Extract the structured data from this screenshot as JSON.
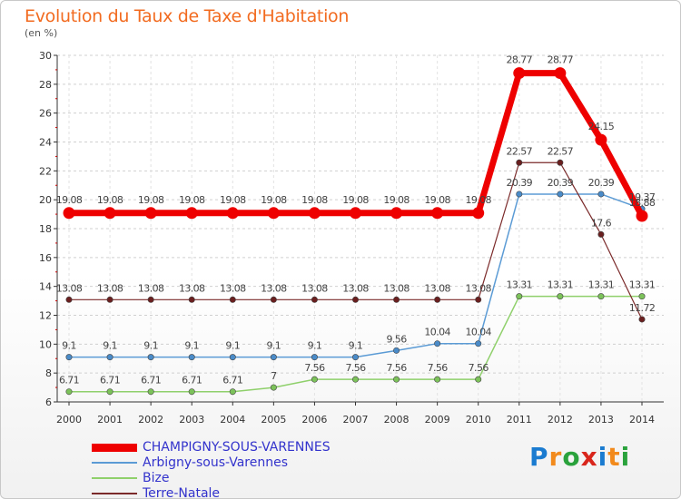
{
  "title": "Evolution du Taux de Taxe d'Habitation",
  "unit_label": "(en %)",
  "logo": {
    "text": "Proxiti",
    "letter_colors": [
      "#1a7bd0",
      "#f28a1c",
      "#2aa23c",
      "#d9261c",
      "#1a7bd0",
      "#f28a1c",
      "#2aa23c"
    ]
  },
  "chart_data": {
    "type": "line",
    "title": "Evolution du Taux de Taxe d'Habitation",
    "ylabel": "(en %)",
    "xlabel": "",
    "x": [
      "2000",
      "2001",
      "2002",
      "2003",
      "2004",
      "2005",
      "2006",
      "2007",
      "2008",
      "2009",
      "2010",
      "2011",
      "2012",
      "2013",
      "2014"
    ],
    "ylim": [
      6,
      30
    ],
    "yticks": [
      6,
      8,
      10,
      12,
      14,
      16,
      18,
      20,
      22,
      24,
      26,
      28,
      30
    ],
    "grid": "horizontal",
    "legend_position": "bottom-left",
    "series": [
      {
        "name": "CHAMPIGNY-SOUS-VARENNES",
        "color": "#ee0000",
        "values": [
          19.08,
          19.08,
          19.08,
          19.08,
          19.08,
          19.08,
          19.08,
          19.08,
          19.08,
          19.08,
          19.08,
          28.77,
          28.77,
          24.15,
          18.88
        ],
        "labels": [
          "19.08",
          "19.08",
          "19.08",
          "19.08",
          "19.08",
          "19.08",
          "19.08",
          "19.08",
          "19.08",
          "19.08",
          "19.08",
          "28.77",
          "28.77",
          "24.15",
          "18.88"
        ]
      },
      {
        "name": "Arbigny-sous-Varennes",
        "color": "#5b9bd5",
        "values": [
          9.1,
          9.1,
          9.1,
          9.1,
          9.1,
          9.1,
          9.1,
          9.1,
          9.56,
          10.04,
          10.04,
          20.39,
          20.39,
          20.39,
          19.37
        ],
        "labels": [
          "9.1",
          "9.1",
          "9.1",
          "9.1",
          "9.1",
          "9.1",
          "9.1",
          "9.1",
          "9.56",
          "10.04",
          "10.04",
          "20.39",
          "20.39",
          "20.39",
          "19.37"
        ]
      },
      {
        "name": "Bize",
        "color": "#8fd06b",
        "values": [
          6.71,
          6.71,
          6.71,
          6.71,
          6.71,
          7,
          7.56,
          7.56,
          7.56,
          7.56,
          7.56,
          13.31,
          13.31,
          13.31,
          13.31
        ],
        "labels": [
          "6.71",
          "6.71",
          "6.71",
          "6.71",
          "6.71",
          "7",
          "7.56",
          "7.56",
          "7.56",
          "7.56",
          "7.56",
          "13.31",
          "13.31",
          "13.31",
          "13.31"
        ]
      },
      {
        "name": "Terre-Natale",
        "color": "#7b2a2a",
        "values": [
          13.08,
          13.08,
          13.08,
          13.08,
          13.08,
          13.08,
          13.08,
          13.08,
          13.08,
          13.08,
          13.08,
          22.57,
          22.57,
          17.6,
          11.72
        ],
        "labels": [
          "13.08",
          "13.08",
          "13.08",
          "13.08",
          "13.08",
          "13.08",
          "13.08",
          "13.08",
          "13.08",
          "13.08",
          "13.08",
          "22.57",
          "22.57",
          "17.6",
          "11.72"
        ]
      }
    ]
  }
}
